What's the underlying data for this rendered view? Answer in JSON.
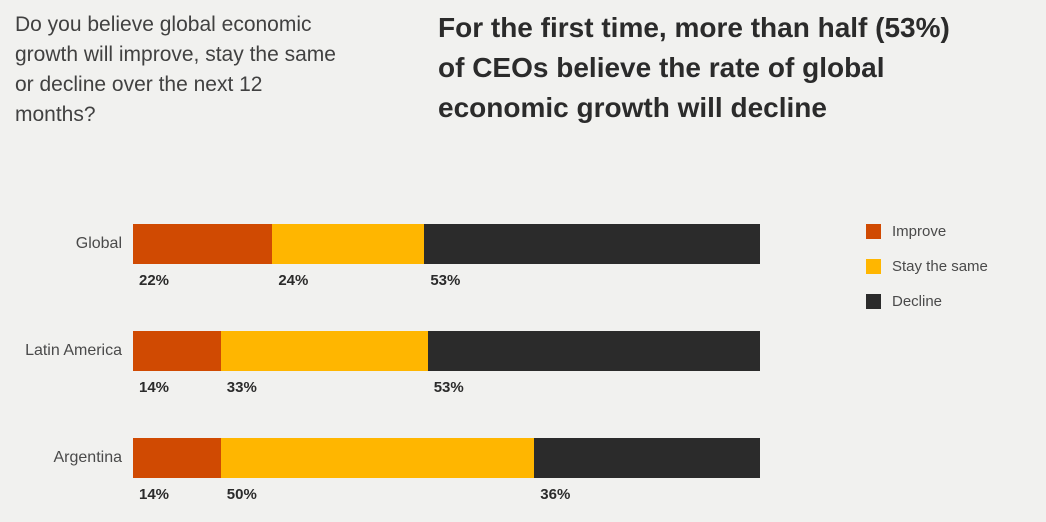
{
  "question": "Do you believe global economic\ngrowth will improve, stay the same\nor decline over the next 12\nmonths?",
  "headline": "For the first time, more than half (53%)\nof CEOs believe the rate of global\neconomic growth will decline",
  "colors": {
    "background": "#F1F1EF",
    "improve": "#D04A02",
    "stay_the_same": "#FFB600",
    "decline": "#2B2B2B",
    "headline_text": "#2B2B2B",
    "question_text": "#414141",
    "label_text": "#4A4A4A"
  },
  "chart_data": {
    "type": "bar",
    "orientation": "horizontal",
    "stacked": true,
    "title": "For the first time, more than half (53%) of CEOs believe the rate of global economic growth will decline",
    "categories": [
      "Global",
      "Latin America",
      "Argentina"
    ],
    "series": [
      {
        "name": "Improve",
        "color": "#D04A02",
        "values": [
          22,
          14,
          14
        ],
        "display": [
          "22%",
          "14%",
          "14%"
        ]
      },
      {
        "name": "Stay the same",
        "color": "#FFB600",
        "values": [
          24,
          33,
          50
        ],
        "display": [
          "24%",
          "33%",
          "50%"
        ]
      },
      {
        "name": "Decline",
        "color": "#2B2B2B",
        "values": [
          53,
          53,
          36
        ],
        "display": [
          "53%",
          "53%",
          "36%"
        ]
      }
    ],
    "value_suffix": "%",
    "axis_max": 100,
    "grid": false,
    "legend_position": "right"
  }
}
